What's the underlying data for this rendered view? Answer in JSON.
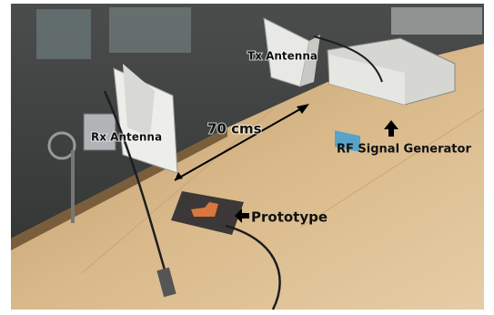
{
  "labels": {
    "tx_antenna": "Tx Antenna",
    "distance": "70 cms",
    "rx_antenna": "Rx Antenna",
    "signal_generator": "RF Signal Generator",
    "prototype": "Prototype"
  }
}
